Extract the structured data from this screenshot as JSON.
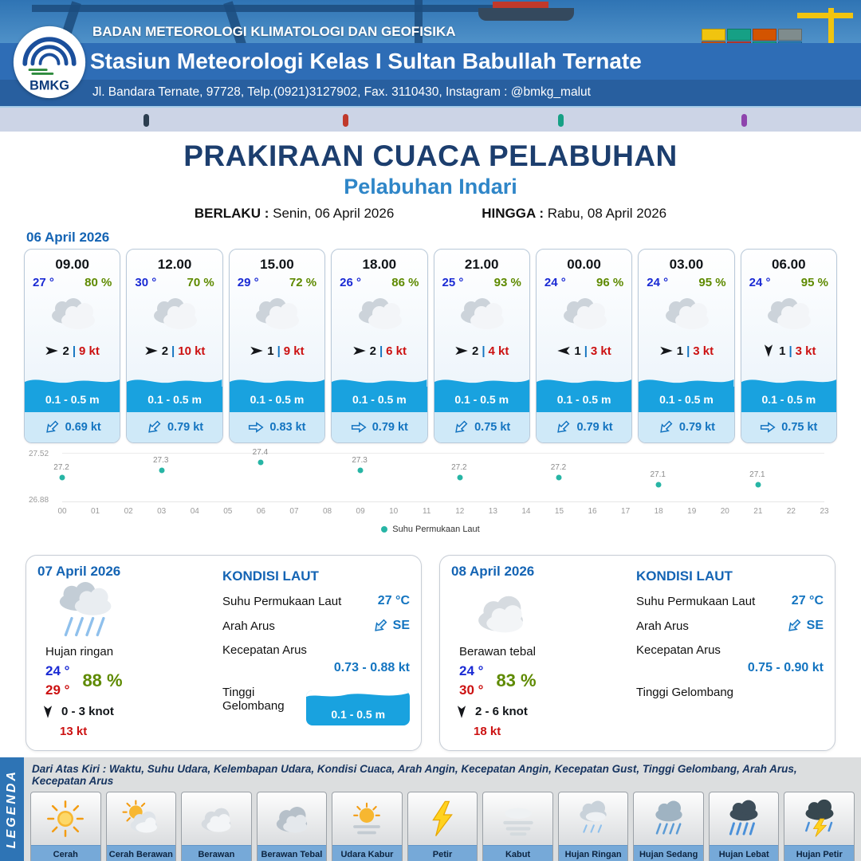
{
  "header": {
    "agency": "BADAN METEOROLOGI KLIMATOLOGI DAN GEOFISIKA",
    "station": "Stasiun Meteorologi Kelas I Sultan Babullah Ternate",
    "address": "Jl. Bandara Ternate, 97728, Telp.(0921)3127902, Fax. 3110430, Instagram : @bmkg_malut",
    "logo_text": "BMKG"
  },
  "title": {
    "main": "PRAKIRAAN CUACA PELABUHAN",
    "subtitle": "Pelabuhan Indari",
    "valid_label": "BERLAKU :",
    "valid_value": "Senin, 06 April 2026",
    "until_label": "HINGGA :",
    "until_value": "Rabu, 08 April 2026"
  },
  "forecast": {
    "date": "06 April 2026",
    "separator": "|",
    "cards": [
      {
        "time": "09.00",
        "temp": "27 °",
        "humidity": "80 %",
        "wind_speed": "2",
        "gust": "9 kt",
        "wind_dir": "right",
        "wave": "0.1 - 0.5 m",
        "current": "0.69 kt",
        "current_dir": "down-left"
      },
      {
        "time": "12.00",
        "temp": "30 °",
        "humidity": "70 %",
        "wind_speed": "2",
        "gust": "10 kt",
        "wind_dir": "right",
        "wave": "0.1 - 0.5 m",
        "current": "0.79 kt",
        "current_dir": "down-left"
      },
      {
        "time": "15.00",
        "temp": "29 °",
        "humidity": "72 %",
        "wind_speed": "1",
        "gust": "9 kt",
        "wind_dir": "right",
        "wave": "0.1 - 0.5 m",
        "current": "0.83 kt",
        "current_dir": "right"
      },
      {
        "time": "18.00",
        "temp": "26 °",
        "humidity": "86 %",
        "wind_speed": "2",
        "gust": "6 kt",
        "wind_dir": "right",
        "wave": "0.1 - 0.5 m",
        "current": "0.79 kt",
        "current_dir": "right"
      },
      {
        "time": "21.00",
        "temp": "25 °",
        "humidity": "93 %",
        "wind_speed": "2",
        "gust": "4 kt",
        "wind_dir": "right",
        "wave": "0.1 - 0.5 m",
        "current": "0.75 kt",
        "current_dir": "down-left"
      },
      {
        "time": "00.00",
        "temp": "24 °",
        "humidity": "96 %",
        "wind_speed": "1",
        "gust": "3 kt",
        "wind_dir": "left",
        "wave": "0.1 - 0.5 m",
        "current": "0.79 kt",
        "current_dir": "down-left"
      },
      {
        "time": "03.00",
        "temp": "24 °",
        "humidity": "95 %",
        "wind_speed": "1",
        "gust": "3 kt",
        "wind_dir": "right",
        "wave": "0.1 - 0.5 m",
        "current": "0.79 kt",
        "current_dir": "down-left"
      },
      {
        "time": "06.00",
        "temp": "24 °",
        "humidity": "95 %",
        "wind_speed": "1",
        "gust": "3 kt",
        "wind_dir": "down",
        "wave": "0.1 - 0.5 m",
        "current": "0.75 kt",
        "current_dir": "right"
      }
    ]
  },
  "chart_data": {
    "type": "scatter",
    "series_name": "Suhu Permukaan Laut",
    "x_hours": [
      0,
      3,
      6,
      9,
      12,
      15,
      18,
      21
    ],
    "values": [
      27.2,
      27.3,
      27.4,
      27.3,
      27.2,
      27.2,
      27.1,
      27.1
    ],
    "x_ticks": [
      "00",
      "01",
      "02",
      "03",
      "04",
      "05",
      "06",
      "07",
      "08",
      "09",
      "10",
      "11",
      "12",
      "13",
      "14",
      "15",
      "16",
      "17",
      "18",
      "19",
      "20",
      "21",
      "22",
      "23"
    ],
    "ylim": [
      26.88,
      27.52
    ],
    "y_tick_labels": [
      "27.52",
      "26.88"
    ],
    "point_color": "#27b5a5",
    "legend_position": "bottom",
    "grid": false
  },
  "summaries": [
    {
      "date": "07 April 2026",
      "icon": "shower",
      "condition": "Hujan ringan",
      "temp_min": "24 °",
      "temp_max": "29 °",
      "humidity": "88 %",
      "wind": "0  - 3 knot",
      "gust": "13 kt",
      "sea": {
        "title": "KONDISI LAUT",
        "sst_label": "Suhu Permukaan Laut",
        "sst": "27 °C",
        "dir_label": "Arah Arus",
        "dir": "SE",
        "speed_label": "Kecepatan Arus",
        "speed": "0.73  - 0.88 kt",
        "wave_label": "Tinggi Gelombang",
        "wave": "0.1 - 0.5 m"
      }
    },
    {
      "date": "08 April 2026",
      "icon": "cloud",
      "condition": "Berawan tebal",
      "temp_min": "24 °",
      "temp_max": "30 °",
      "humidity": "83 %",
      "wind": "2  - 6 knot",
      "gust": "18 kt",
      "sea": {
        "title": "KONDISI LAUT",
        "sst_label": "Suhu Permukaan Laut",
        "sst": "27 °C",
        "dir_label": "Arah Arus",
        "dir": "SE",
        "speed_label": "Kecepatan Arus",
        "speed": "0.75  - 0.90 kt",
        "wave_label": "Tinggi Gelombang",
        "wave": ""
      }
    }
  ],
  "legend": {
    "title": "LEGENDA",
    "note": "Dari Atas Kiri : Waktu, Suhu Udara, Kelembapan Udara, Kondisi Cuaca, Arah Angin, Kecepatan Angin, Kecepatan Gust, Tinggi Gelombang, Arah Arus, Kecepatan Arus",
    "items": [
      {
        "label": "Cerah",
        "icon": "sun"
      },
      {
        "label": "Cerah Berawan",
        "icon": "sun-cloud"
      },
      {
        "label": "Berawan",
        "icon": "cloud"
      },
      {
        "label": "Berawan Tebal",
        "icon": "cloud-thick"
      },
      {
        "label": "Udara Kabur",
        "icon": "haze-sun"
      },
      {
        "label": "Petir",
        "icon": "lightning"
      },
      {
        "label": "Kabut",
        "icon": "fog"
      },
      {
        "label": "Hujan Ringan",
        "icon": "rain-light"
      },
      {
        "label": "Hujan Sedang",
        "icon": "rain-medium"
      },
      {
        "label": "Hujan Lebat",
        "icon": "rain-heavy"
      },
      {
        "label": "Hujan Petir",
        "icon": "storm"
      }
    ]
  },
  "colors": {
    "temp_blue": "#1a2ad4",
    "humidity_green": "#5e8a00",
    "alert_red": "#cc1111",
    "wave_blue": "#19a2df",
    "sst_teal": "#27b5a5",
    "accent_blue": "#1464b4"
  }
}
